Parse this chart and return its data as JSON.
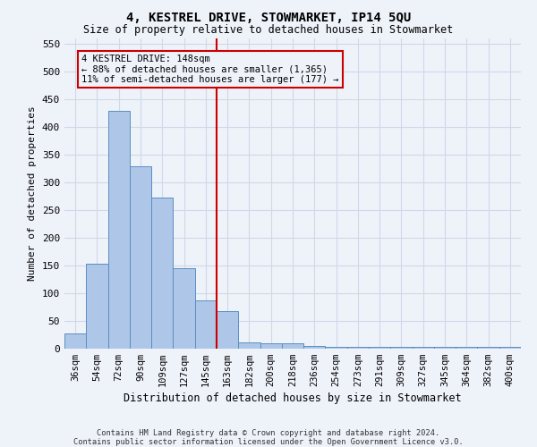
{
  "title1": "4, KESTREL DRIVE, STOWMARKET, IP14 5QU",
  "title2": "Size of property relative to detached houses in Stowmarket",
  "xlabel": "Distribution of detached houses by size in Stowmarket",
  "ylabel": "Number of detached properties",
  "footnote1": "Contains HM Land Registry data © Crown copyright and database right 2024.",
  "footnote2": "Contains public sector information licensed under the Open Government Licence v3.0.",
  "bar_labels": [
    "36sqm",
    "54sqm",
    "72sqm",
    "90sqm",
    "109sqm",
    "127sqm",
    "145sqm",
    "163sqm",
    "182sqm",
    "200sqm",
    "218sqm",
    "236sqm",
    "254sqm",
    "273sqm",
    "291sqm",
    "309sqm",
    "327sqm",
    "345sqm",
    "364sqm",
    "382sqm",
    "400sqm"
  ],
  "bar_values": [
    27,
    153,
    428,
    328,
    273,
    145,
    87,
    68,
    12,
    10,
    10,
    5,
    3,
    3,
    3,
    3,
    3,
    3,
    3,
    3,
    3
  ],
  "bar_color": "#aec6e8",
  "bar_edge_color": "#5a8fc0",
  "grid_color": "#d0d8e8",
  "property_line_label": "4 KESTREL DRIVE: 148sqm",
  "annotation_line1": "← 88% of detached houses are smaller (1,365)",
  "annotation_line2": "11% of semi-detached houses are larger (177) →",
  "vline_color": "#cc0000",
  "annotation_box_color": "#cc0000",
  "ylim": [
    0,
    560
  ],
  "yticks": [
    0,
    50,
    100,
    150,
    200,
    250,
    300,
    350,
    400,
    450,
    500,
    550
  ],
  "background_color": "#eef2f9"
}
